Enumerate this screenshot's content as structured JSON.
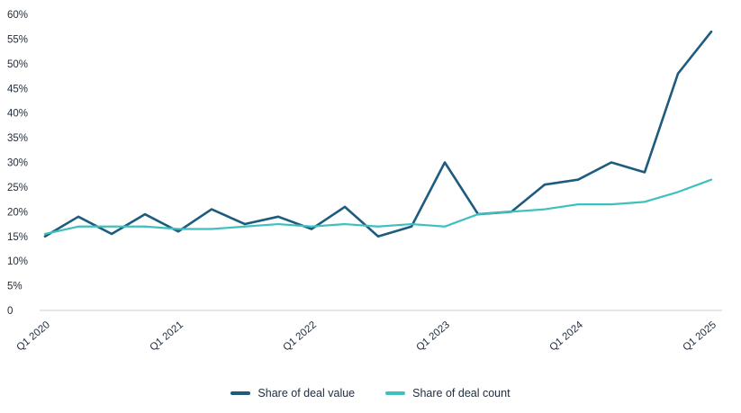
{
  "chart_data": {
    "type": "line",
    "title": "",
    "grid": false,
    "legend_position": "bottom",
    "ylim": [
      0,
      60
    ],
    "y_ticks": [
      0,
      5,
      10,
      15,
      20,
      25,
      30,
      35,
      40,
      45,
      50,
      55,
      60
    ],
    "y_tick_labels": [
      "0",
      "5%",
      "10%",
      "15%",
      "20%",
      "25%",
      "30%",
      "35%",
      "40%",
      "45%",
      "50%",
      "55%",
      "60%"
    ],
    "x": [
      "Q1 2020",
      "Q2 2020",
      "Q3 2020",
      "Q4 2020",
      "Q1 2021",
      "Q2 2021",
      "Q3 2021",
      "Q4 2021",
      "Q1 2022",
      "Q2 2022",
      "Q3 2022",
      "Q4 2022",
      "Q1 2023",
      "Q2 2023",
      "Q3 2023",
      "Q4 2023",
      "Q1 2024",
      "Q2 2024",
      "Q3 2024",
      "Q4 2024",
      "Q1 2025"
    ],
    "x_tick_indices": [
      0,
      4,
      8,
      12,
      16,
      20
    ],
    "x_tick_labels": [
      "Q1 2020",
      "Q1 2021",
      "Q1 2022",
      "Q1 2023",
      "Q1 2024",
      "Q1 2025"
    ],
    "series": [
      {
        "name": "Share of deal value",
        "color": "#1d5b7f",
        "values": [
          15,
          19,
          15.5,
          19.5,
          16,
          20.5,
          17.5,
          19,
          16.5,
          21,
          15,
          17,
          30,
          19.5,
          20,
          25.5,
          26.5,
          30,
          28,
          48,
          56.5
        ]
      },
      {
        "name": "Share of deal count",
        "color": "#3fc0be",
        "values": [
          15.5,
          17,
          17,
          17,
          16.5,
          16.5,
          17,
          17.5,
          17,
          17.5,
          17,
          17.5,
          17,
          19.5,
          20,
          20.5,
          21.5,
          21.5,
          22,
          24,
          26.5
        ]
      }
    ],
    "axis_line_color": "#c9ced4",
    "text_color": "#1e2b3c"
  }
}
